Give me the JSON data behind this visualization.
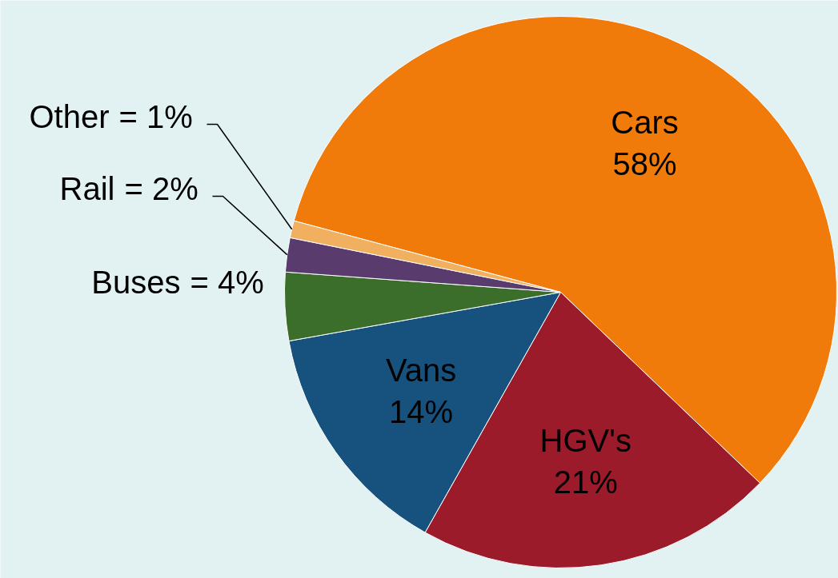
{
  "chart_data": {
    "type": "pie",
    "categories": [
      "Cars",
      "HGV's",
      "Vans",
      "Buses",
      "Rail",
      "Other"
    ],
    "values": [
      58,
      21,
      14,
      4,
      2,
      1
    ],
    "colors": [
      "#f07b0a",
      "#9b1b2a",
      "#17527f",
      "#3b6e2a",
      "#5a3b6e",
      "#f0b060"
    ],
    "value_labels": [
      "58%",
      "21%",
      "14%",
      "= 4%",
      "= 2%",
      "= 1%"
    ]
  }
}
